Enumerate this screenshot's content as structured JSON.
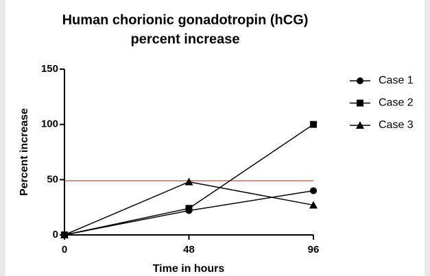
{
  "chart_data": {
    "type": "line",
    "title": [
      "Human chorionic gonadotropin (hCG)",
      "percent increase"
    ],
    "xlabel": "Time in hours",
    "ylabel": "Percent increase",
    "x": [
      0,
      48,
      96
    ],
    "series": [
      {
        "name": "Case 1",
        "color": "#000000",
        "marker": "circle",
        "values": [
          0,
          22,
          40
        ]
      },
      {
        "name": "Case 2",
        "color": "#000000",
        "marker": "square",
        "values": [
          0,
          24,
          100
        ]
      },
      {
        "name": "Case 3",
        "color": "#000000",
        "marker": "triangle",
        "values": [
          0,
          48,
          27
        ]
      }
    ],
    "reference_line": {
      "value": 49,
      "color": "#c0392b"
    },
    "xlim": [
      0,
      96
    ],
    "xticks": [
      0,
      48,
      96
    ],
    "ylim": [
      0,
      150
    ],
    "yticks": [
      0,
      50,
      100,
      150
    ],
    "legend": "right"
  }
}
